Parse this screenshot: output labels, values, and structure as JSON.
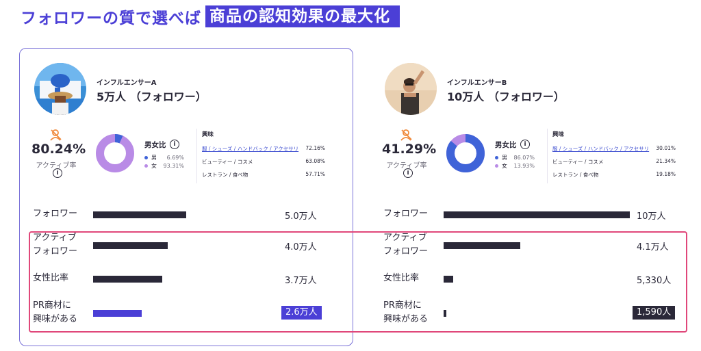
{
  "headline": {
    "plain": "フォロワーの質で選べば",
    "highlight": "商品の認知効果の最大化"
  },
  "colors": {
    "accent": "#4b3fd6",
    "dark_bar": "#2a2838",
    "male": "#3f63d8",
    "female": "#b98be6",
    "highlight_frame": "#e0477a"
  },
  "labels": {
    "active_rate": "アクティブ率",
    "gender_ratio": "男女比",
    "male": "男",
    "female": "女",
    "interest": "興味",
    "metric_followers": "フォロワー",
    "metric_active": "アクティブ\nフォロワー",
    "metric_female": "女性比率",
    "metric_pr": "PR商材に\n興味がある"
  },
  "icons": {
    "active": "no-user-icon",
    "info": "info-icon"
  },
  "influencer_a": {
    "name": "インフルエンサーA",
    "count": "5万人 （フォロワー）",
    "active_rate": "80.24%",
    "male_pct": "6.69%",
    "female_pct": "93.31%",
    "male_ratio": 0.0669,
    "interests": [
      {
        "label": "服 / シューズ / ハンドバック / アクセサリ",
        "value": "72.16%"
      },
      {
        "label": "ビューティー / コスメ",
        "value": "63.08%"
      },
      {
        "label": "レストラン / 食べ物",
        "value": "57.71%"
      }
    ],
    "metrics": {
      "followers": {
        "value": "5.0万人",
        "fraction": 0.5
      },
      "active": {
        "value": "4.0万人",
        "fraction": 0.4
      },
      "female": {
        "value": "3.7万人",
        "fraction": 0.37
      },
      "pr": {
        "value": "2.6万人",
        "fraction": 0.26
      }
    }
  },
  "influencer_b": {
    "name": "インフルエンサーB",
    "count": "10万人 （フォロワー）",
    "active_rate": "41.29%",
    "male_pct": "86.07%",
    "female_pct": "13.93%",
    "male_ratio": 0.8607,
    "interests": [
      {
        "label": "服 / シューズ / ハンドバック / アクセサリ",
        "value": "30.01%"
      },
      {
        "label": "ビューティー / コスメ",
        "value": "21.34%"
      },
      {
        "label": "レストラン / 食べ物",
        "value": "19.18%"
      }
    ],
    "metrics": {
      "followers": {
        "value": "10万人",
        "fraction": 1.0
      },
      "active": {
        "value": "4.1万人",
        "fraction": 0.41
      },
      "female": {
        "value": "5,330人",
        "fraction": 0.0533
      },
      "pr": {
        "value": "1,590人",
        "fraction": 0.0159
      }
    }
  }
}
